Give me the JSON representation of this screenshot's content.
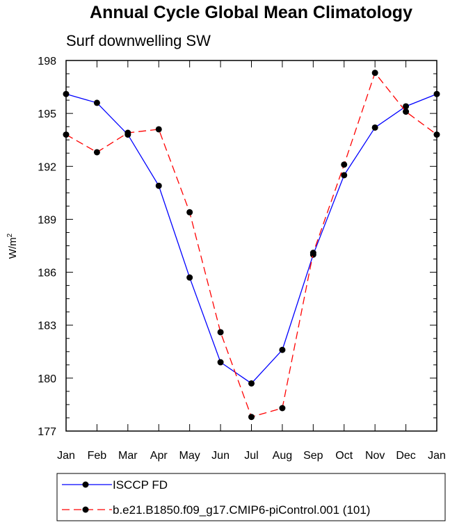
{
  "chart_data": {
    "type": "line",
    "title": "Annual Cycle Global Mean Climatology",
    "subtitle": "Surf downwelling SW",
    "ylabel": "W/m",
    "ylabel_sup": "2",
    "xlabel": "",
    "categories": [
      "Jan",
      "Feb",
      "Mar",
      "Apr",
      "May",
      "Jun",
      "Jul",
      "Aug",
      "Sep",
      "Oct",
      "Nov",
      "Dec",
      "Jan"
    ],
    "ylim": [
      177,
      198
    ],
    "yticks": [
      177,
      180,
      183,
      186,
      189,
      192,
      195,
      198
    ],
    "grid": false,
    "legend_position": "bottom",
    "series": [
      {
        "name": "ISCCP FD",
        "color": "#0000ff",
        "dash": "solid",
        "marker": "filled-circle",
        "values": [
          196.1,
          195.6,
          193.8,
          190.9,
          185.7,
          180.9,
          179.7,
          181.6,
          187.0,
          191.5,
          194.2,
          195.4,
          196.1
        ]
      },
      {
        "name": "b.e21.B1850.f09_g17.CMIP6-piControl.001 (101)",
        "color": "#ff0000",
        "dash": "dashed",
        "marker": "filled-circle",
        "values": [
          193.8,
          192.8,
          193.9,
          194.1,
          189.4,
          182.6,
          177.8,
          178.3,
          187.1,
          192.1,
          197.3,
          195.1,
          193.8
        ]
      }
    ]
  }
}
